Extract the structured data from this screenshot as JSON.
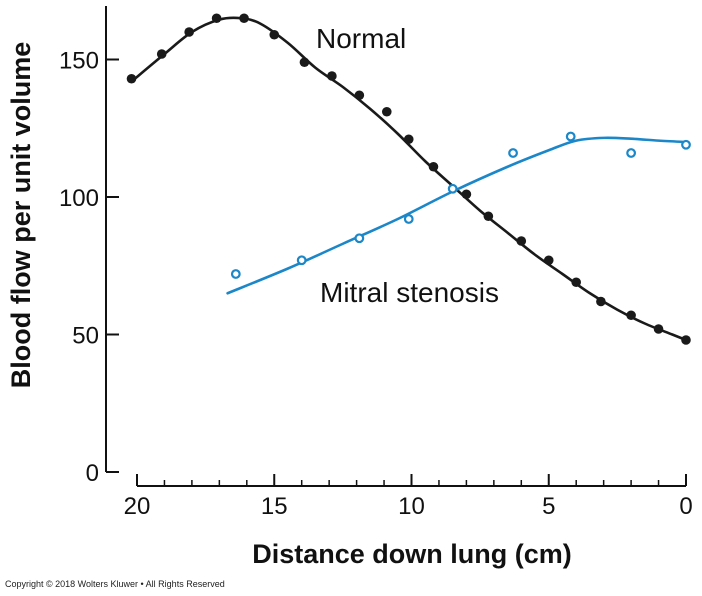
{
  "copyright": "Copyright © 2018 Wolters Kluwer • All Rights Reserved",
  "chart_data": {
    "type": "line",
    "title": "",
    "xlabel": "Distance down lung (cm)",
    "ylabel": "Blood flow per unit volume",
    "xlim": [
      20,
      0
    ],
    "ylim": [
      0,
      165
    ],
    "x_ticks": [
      20,
      15,
      10,
      5,
      0
    ],
    "y_ticks": [
      0,
      50,
      100,
      150
    ],
    "grid": false,
    "legend": "none",
    "series": [
      {
        "name": "Normal",
        "color": "#1a1a1a",
        "marker": "filled-circle",
        "points": [
          {
            "x": 20.2,
            "y": 143
          },
          {
            "x": 19.1,
            "y": 152
          },
          {
            "x": 18.1,
            "y": 160
          },
          {
            "x": 17.1,
            "y": 165
          },
          {
            "x": 16.1,
            "y": 165
          },
          {
            "x": 15.0,
            "y": 159
          },
          {
            "x": 13.9,
            "y": 149
          },
          {
            "x": 12.9,
            "y": 144
          },
          {
            "x": 11.9,
            "y": 137
          },
          {
            "x": 10.9,
            "y": 131
          },
          {
            "x": 10.1,
            "y": 121
          },
          {
            "x": 9.2,
            "y": 111
          },
          {
            "x": 8.0,
            "y": 101
          },
          {
            "x": 7.2,
            "y": 93
          },
          {
            "x": 6.0,
            "y": 84
          },
          {
            "x": 5.0,
            "y": 77
          },
          {
            "x": 4.0,
            "y": 69
          },
          {
            "x": 3.1,
            "y": 62
          },
          {
            "x": 2.0,
            "y": 57
          },
          {
            "x": 1.0,
            "y": 52
          },
          {
            "x": 0.0,
            "y": 48
          }
        ],
        "curve": [
          {
            "x": 20.2,
            "y": 142
          },
          {
            "x": 19.0,
            "y": 152
          },
          {
            "x": 18.0,
            "y": 160
          },
          {
            "x": 17.0,
            "y": 164.5
          },
          {
            "x": 16.2,
            "y": 165
          },
          {
            "x": 15.5,
            "y": 163
          },
          {
            "x": 14.5,
            "y": 156
          },
          {
            "x": 13.5,
            "y": 147
          },
          {
            "x": 12.5,
            "y": 140
          },
          {
            "x": 11.5,
            "y": 132
          },
          {
            "x": 10.5,
            "y": 123
          },
          {
            "x": 9.5,
            "y": 113
          },
          {
            "x": 8.5,
            "y": 104
          },
          {
            "x": 7.5,
            "y": 95
          },
          {
            "x": 6.5,
            "y": 87
          },
          {
            "x": 5.5,
            "y": 79
          },
          {
            "x": 4.5,
            "y": 72
          },
          {
            "x": 3.5,
            "y": 65
          },
          {
            "x": 2.5,
            "y": 59
          },
          {
            "x": 1.5,
            "y": 54
          },
          {
            "x": 0.5,
            "y": 50
          },
          {
            "x": 0.0,
            "y": 48
          }
        ]
      },
      {
        "name": "Mitral stenosis",
        "color": "#1b87c9",
        "marker": "open-circle",
        "points": [
          {
            "x": 16.4,
            "y": 72
          },
          {
            "x": 14.0,
            "y": 77
          },
          {
            "x": 11.9,
            "y": 85
          },
          {
            "x": 10.1,
            "y": 92
          },
          {
            "x": 8.5,
            "y": 103
          },
          {
            "x": 6.3,
            "y": 116
          },
          {
            "x": 4.2,
            "y": 122
          },
          {
            "x": 2.0,
            "y": 116
          },
          {
            "x": 0.0,
            "y": 119
          }
        ],
        "curve": [
          {
            "x": 16.7,
            "y": 65
          },
          {
            "x": 14.5,
            "y": 74
          },
          {
            "x": 12.5,
            "y": 83
          },
          {
            "x": 10.5,
            "y": 92
          },
          {
            "x": 8.5,
            "y": 102
          },
          {
            "x": 6.5,
            "y": 111
          },
          {
            "x": 5.0,
            "y": 117
          },
          {
            "x": 4.0,
            "y": 120.5
          },
          {
            "x": 3.0,
            "y": 121.5
          },
          {
            "x": 2.0,
            "y": 121.2
          },
          {
            "x": 1.0,
            "y": 120.5
          },
          {
            "x": 0.0,
            "y": 120
          }
        ]
      }
    ]
  }
}
